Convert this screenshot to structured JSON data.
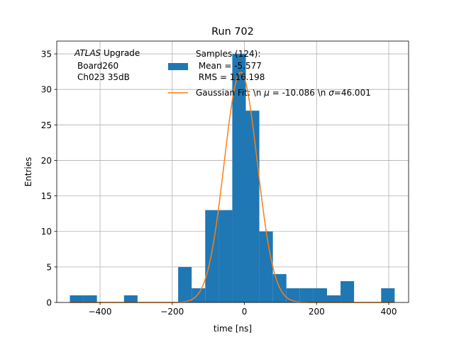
{
  "chart_data": {
    "type": "bar",
    "title": "Run 702",
    "xlabel": "time [ns]",
    "ylabel": "Entries",
    "xlim": [
      -520,
      455
    ],
    "ylim": [
      0,
      36.8
    ],
    "xticks": [
      -400,
      -200,
      0,
      200,
      400
    ],
    "xtick_labels": [
      "−400",
      "−200",
      "0",
      "200",
      "400"
    ],
    "yticks": [
      0,
      5,
      10,
      15,
      20,
      25,
      30,
      35
    ],
    "ytick_labels": [
      "0",
      "5",
      "10",
      "15",
      "20",
      "25",
      "30",
      "35"
    ],
    "grid": true,
    "legend_placement": "upper-center",
    "annotation": {
      "atlas": "ATLAS",
      "upgrade": " Upgrade",
      "board": "Board260",
      "channel": "Ch023 35dB"
    },
    "histogram": {
      "name_lines": [
        "Samples (124):",
        " Mean = -5.577",
        " RMS = 116.198"
      ],
      "color": "#1f77b4",
      "bins": [
        {
          "x0": -483.6,
          "x1": -446.1,
          "count": 1
        },
        {
          "x0": -446.1,
          "x1": -408.6,
          "count": 1
        },
        {
          "x0": -333.6,
          "x1": -296.1,
          "count": 1
        },
        {
          "x0": -183.6,
          "x1": -146.1,
          "count": 5
        },
        {
          "x0": -146.1,
          "x1": -108.6,
          "count": 2
        },
        {
          "x0": -108.6,
          "x1": -71.1,
          "count": 13
        },
        {
          "x0": -71.1,
          "x1": -33.6,
          "count": 13
        },
        {
          "x0": -33.6,
          "x1": 3.9,
          "count": 35
        },
        {
          "x0": 3.9,
          "x1": 41.4,
          "count": 27
        },
        {
          "x0": 41.4,
          "x1": 78.9,
          "count": 10
        },
        {
          "x0": 78.9,
          "x1": 116.4,
          "count": 4
        },
        {
          "x0": 116.4,
          "x1": 153.9,
          "count": 2
        },
        {
          "x0": 153.9,
          "x1": 191.4,
          "count": 2
        },
        {
          "x0": 191.4,
          "x1": 228.9,
          "count": 2
        },
        {
          "x0": 228.9,
          "x1": 266.4,
          "count": 1
        },
        {
          "x0": 266.4,
          "x1": 303.9,
          "count": 3
        },
        {
          "x0": 378.9,
          "x1": 416.4,
          "count": 2
        }
      ]
    },
    "fit": {
      "name": "Gaussian Fit: \\n μ = -10.086 \\n σ=46.001",
      "label_prefix": "Gaussian Fit: \\n ",
      "label_mu": "μ",
      "label_mid": " = -10.086 \\n ",
      "label_sigma": "σ",
      "label_suffix": "=46.001",
      "color": "#ff7f0e",
      "mu": -10.086,
      "sigma": 46.001,
      "amplitude": 32.4,
      "x_range": [
        -483.6,
        416.4
      ]
    }
  }
}
